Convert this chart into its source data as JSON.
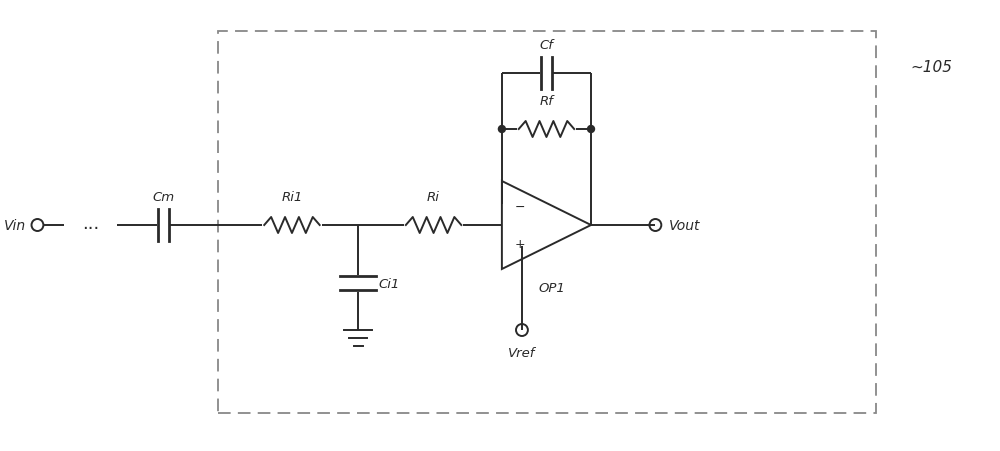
{
  "bg_color": "#ffffff",
  "line_color": "#2a2a2a",
  "dashed_color": "#888888",
  "text_color": "#2a2a2a",
  "fig_width": 10.0,
  "fig_height": 4.52,
  "labels": {
    "Vin": "Vin",
    "Vout": "Vout",
    "Cm": "Cm",
    "Ri1": "Ri1",
    "Ri": "Ri",
    "Ci1": "Ci1",
    "Rf": "Rf",
    "Cf": "Cf",
    "OP1": "OP1",
    "Vref": "Vref",
    "label105": "~105"
  }
}
